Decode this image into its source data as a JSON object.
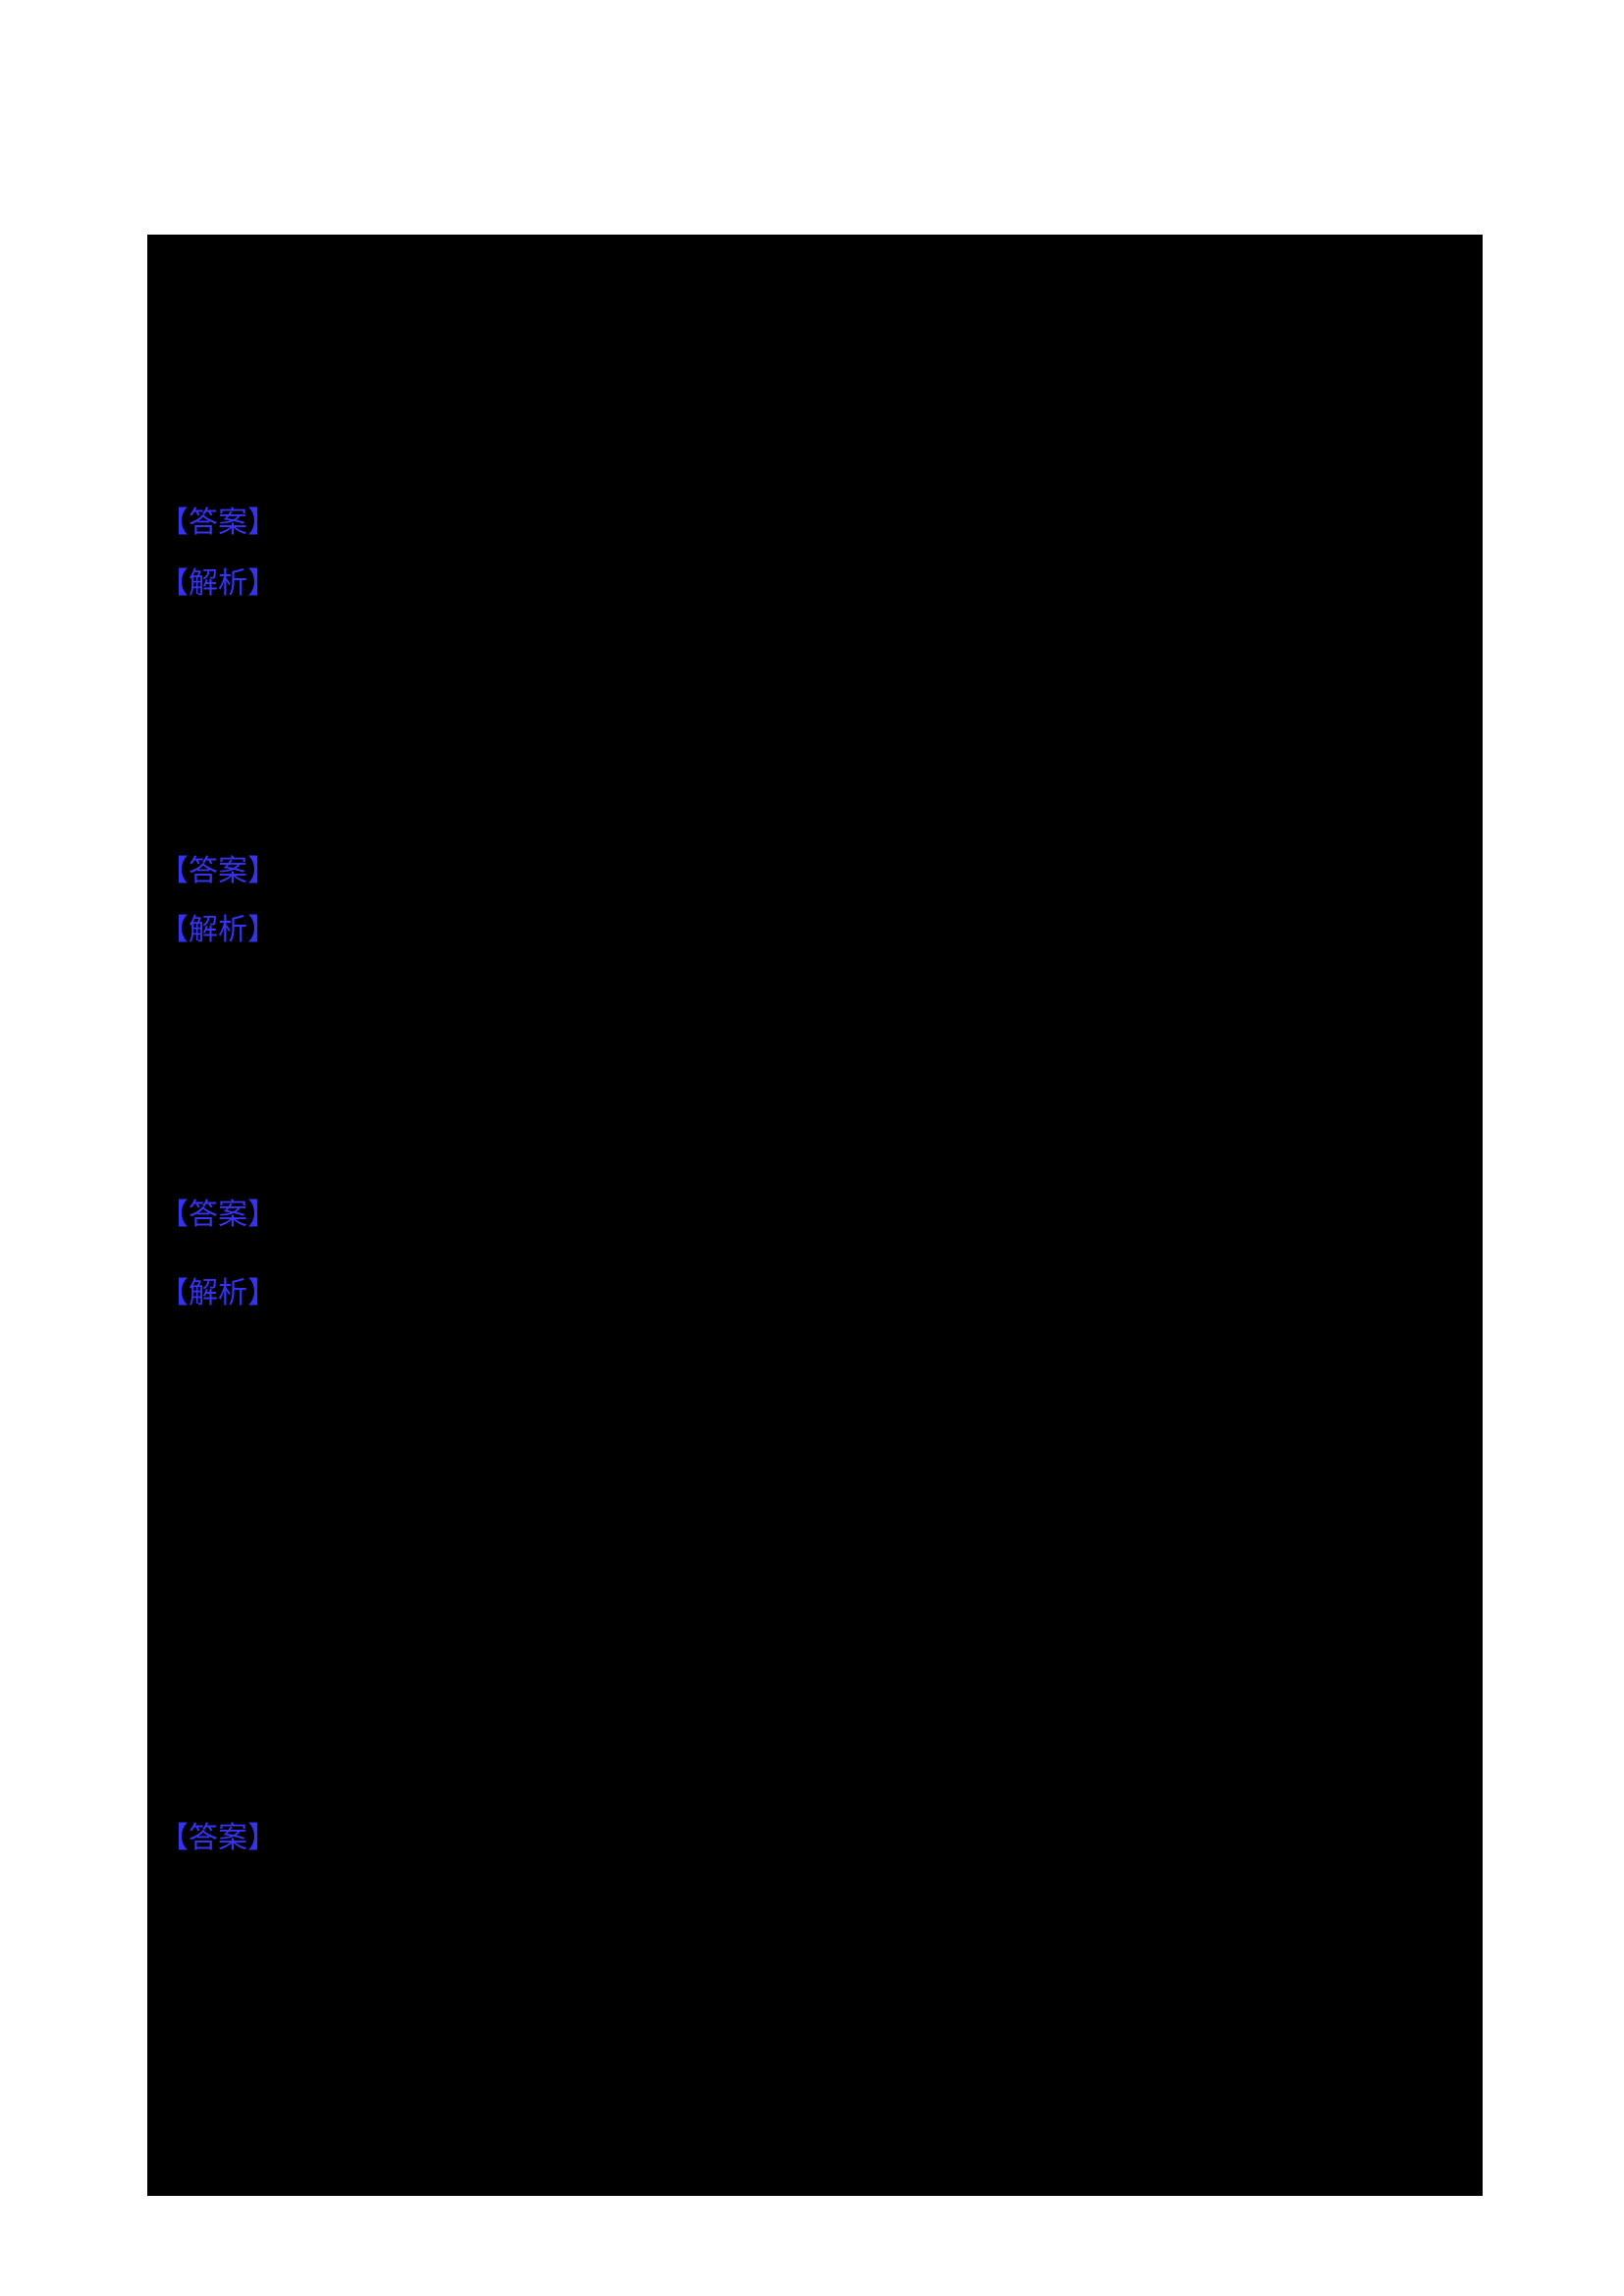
{
  "colors": {
    "page_bg": "#ffffff",
    "content_bg": "#000000",
    "label_blue": "#3533ef"
  },
  "sections": [
    {
      "answer": "【答案】",
      "analysis": "【解析】"
    },
    {
      "answer": "【答案】",
      "analysis": "【解析】"
    },
    {
      "answer": "【答案】",
      "analysis": "【解析】"
    },
    {
      "answer": "【答案】"
    }
  ]
}
